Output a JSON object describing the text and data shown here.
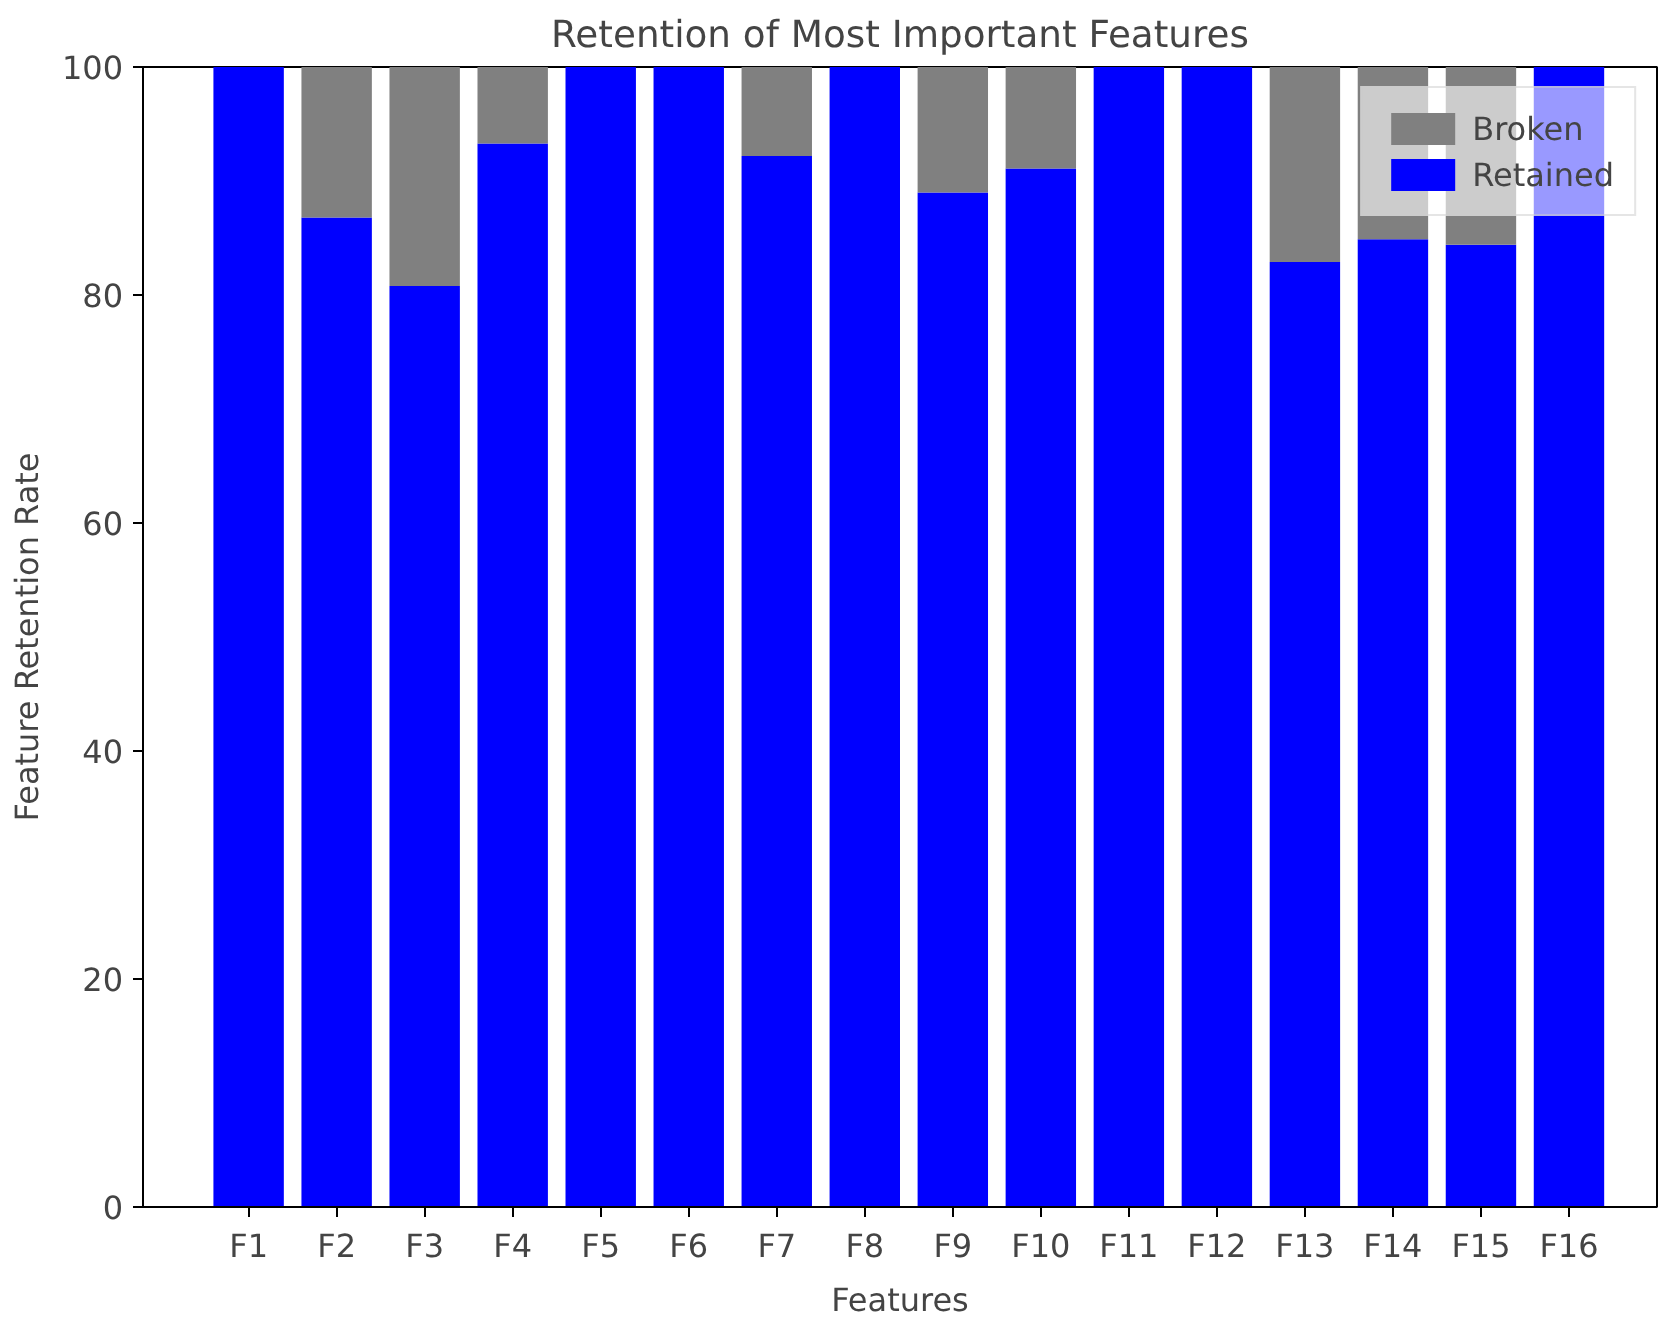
{
  "chart_data": {
    "type": "bar",
    "title": "Retention of Most Important Features",
    "xlabel": "Features",
    "ylabel": "Feature Retention Rate",
    "categories": [
      "F1",
      "F2",
      "F3",
      "F4",
      "F5",
      "F6",
      "F7",
      "F8",
      "F9",
      "F10",
      "F11",
      "F12",
      "F13",
      "F14",
      "F15",
      "F16"
    ],
    "stacked": true,
    "series": [
      {
        "name": "Retained",
        "color": "#0000ff",
        "values": [
          100,
          86.8,
          80.8,
          93.3,
          100,
          100,
          92.2,
          100,
          89.0,
          91.1,
          100,
          100,
          82.9,
          84.9,
          84.4,
          100
        ]
      },
      {
        "name": "Broken",
        "color": "#808080",
        "values": [
          0,
          13.2,
          19.2,
          6.7,
          0,
          0,
          7.8,
          0,
          11.0,
          8.9,
          0,
          0,
          17.1,
          15.1,
          15.6,
          0
        ]
      }
    ],
    "ylim": [
      0,
      100
    ],
    "yticks": [
      0,
      20,
      40,
      60,
      80,
      100
    ],
    "grid": false,
    "legend": "top right"
  }
}
